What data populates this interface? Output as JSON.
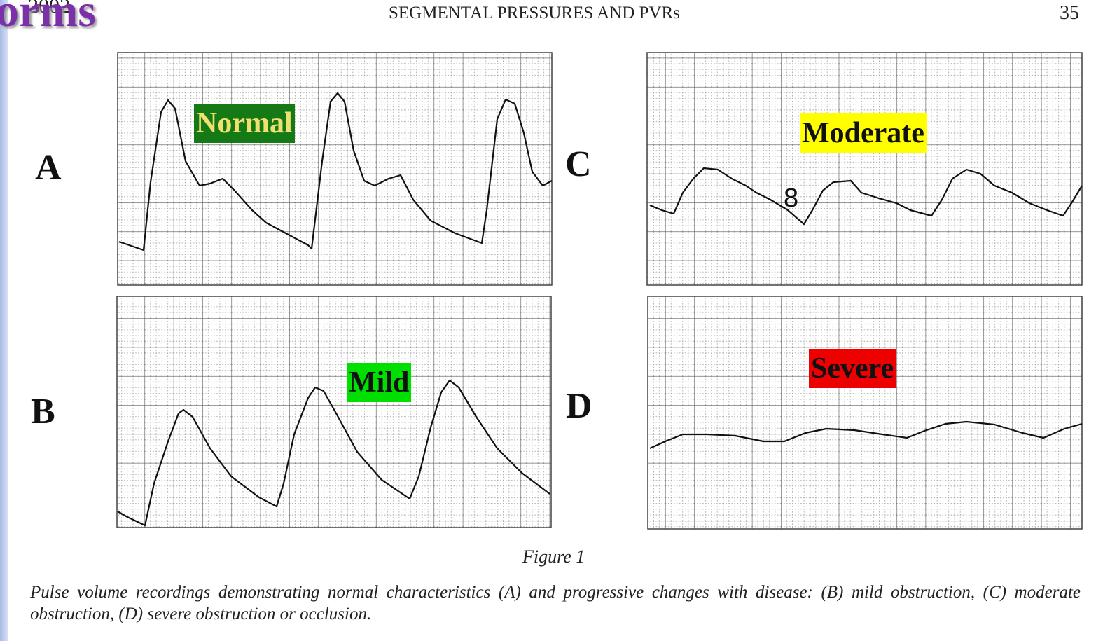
{
  "slide_title_fragment": "orms",
  "header": {
    "year": "2002",
    "title": "SEGMENTAL PRESSURES AND PVRs",
    "page": "35"
  },
  "panels": [
    {
      "letter": "A",
      "label": "Normal"
    },
    {
      "letter": "B",
      "label": "Mild"
    },
    {
      "letter": "C",
      "label": "Moderate",
      "annotation": "8"
    },
    {
      "letter": "D",
      "label": "Severe"
    }
  ],
  "figure": {
    "title": "Figure 1",
    "caption": "Pulse volume recordings demonstrating normal characteristics (A) and progressive changes with disease: (B) mild obstruction, (C) moderate obstruction, (D) severe obstruction or occlusion."
  }
}
